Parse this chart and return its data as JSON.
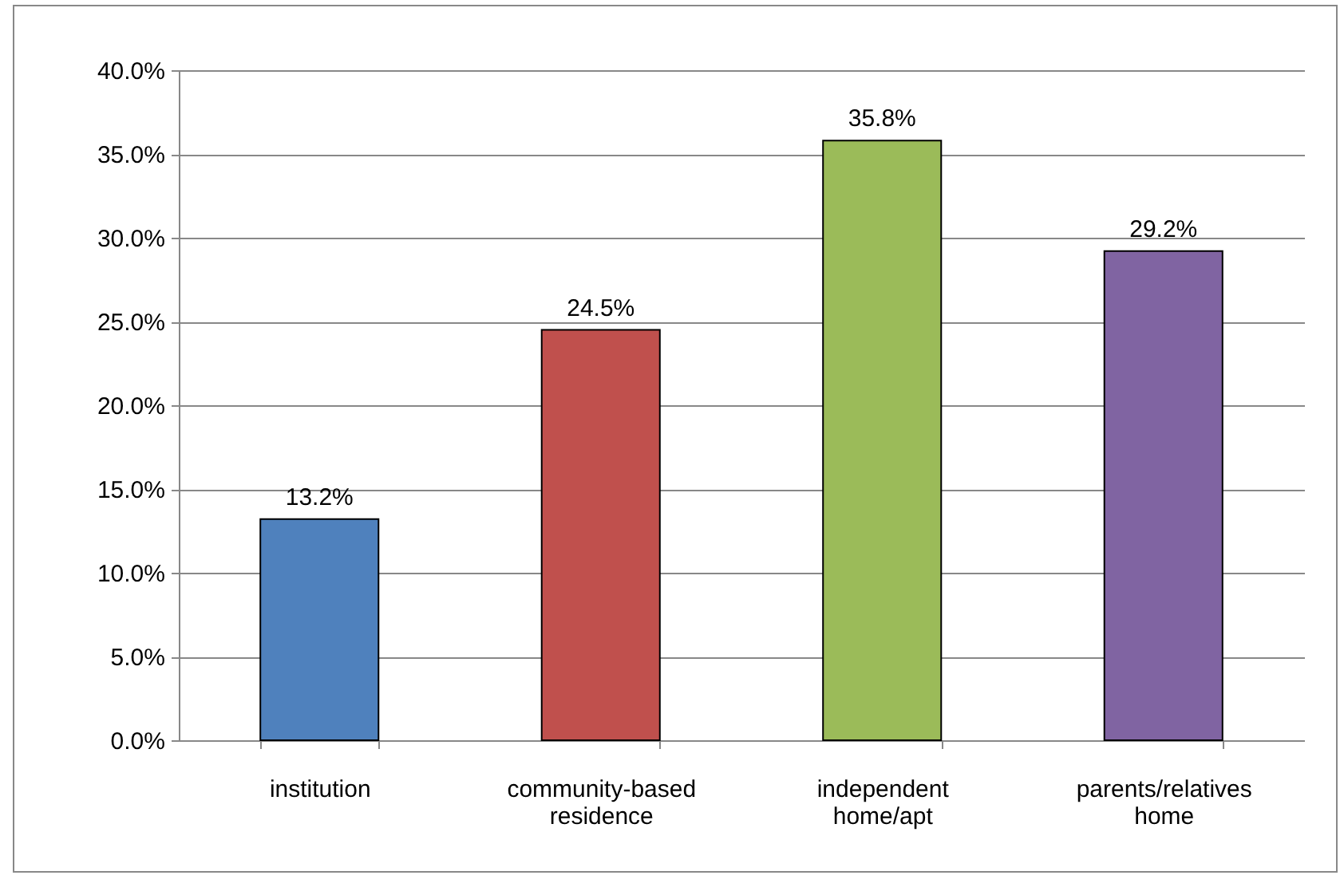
{
  "chart_data": {
    "type": "bar",
    "categories": [
      "institution",
      "community-based residence",
      "independent home/apt",
      "parents/relatives home"
    ],
    "values": [
      13.2,
      24.5,
      35.8,
      29.2
    ],
    "colors": [
      "#4f81bd",
      "#c0504d",
      "#9bbb59",
      "#8064a2"
    ],
    "value_labels": [
      "13.2%",
      "24.5%",
      "35.8%",
      "29.2%"
    ],
    "ylim": [
      0,
      40
    ],
    "yticks": [
      {
        "value": 0,
        "label": "0.0%"
      },
      {
        "value": 5,
        "label": "5.0%"
      },
      {
        "value": 10,
        "label": "10.0%"
      },
      {
        "value": 15,
        "label": "15.0%"
      },
      {
        "value": 20,
        "label": "20.0%"
      },
      {
        "value": 25,
        "label": "25.0%"
      },
      {
        "value": 30,
        "label": "30.0%"
      },
      {
        "value": 35,
        "label": "35.0%"
      },
      {
        "value": 40,
        "label": "40.0%"
      }
    ],
    "grid": "y",
    "legend": false
  }
}
